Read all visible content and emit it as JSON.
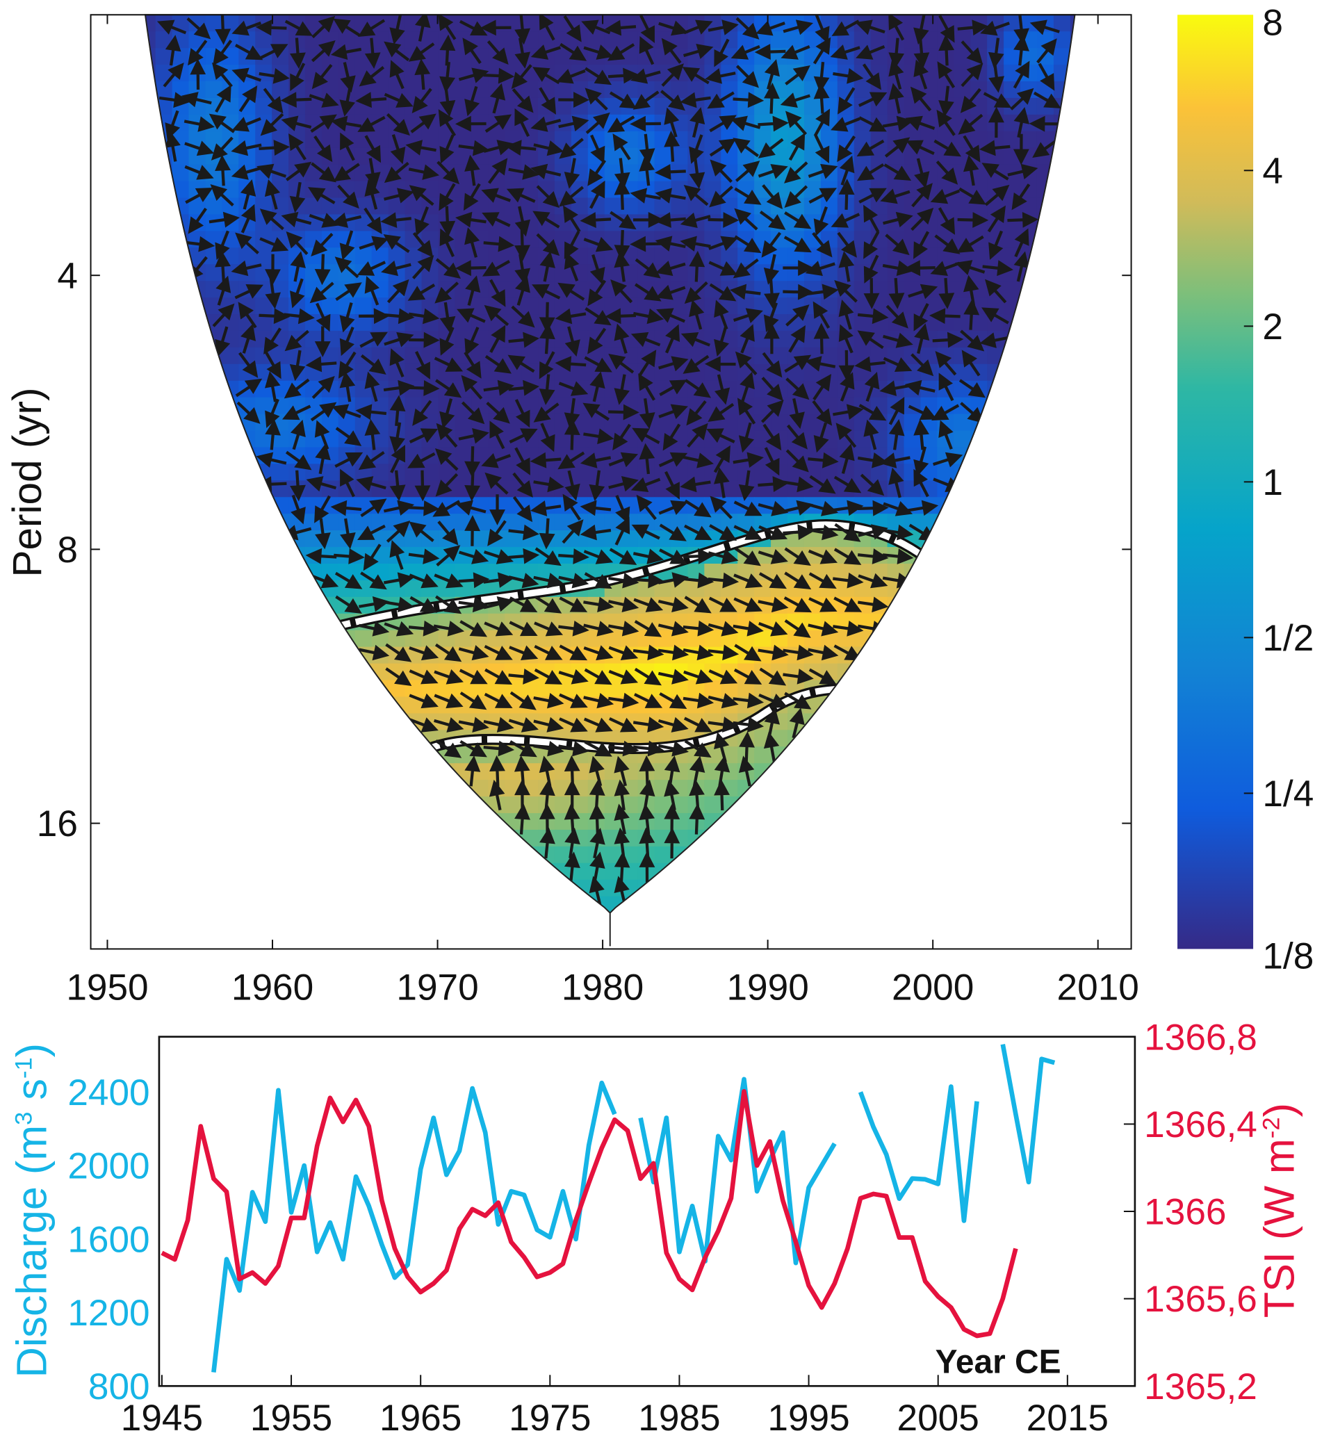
{
  "chart_data": [
    {
      "type": "heatmap",
      "title": "",
      "xlabel": "",
      "ylabel": "Period (yr)",
      "xlim": [
        1949,
        2012
      ],
      "x_ticks": [
        "1950",
        "1960",
        "1970",
        "1980",
        "1990",
        "2000",
        "2010"
      ],
      "y_scale": "log2",
      "ylim": [
        2.07,
        22
      ],
      "y_ticks": [
        "4",
        "8",
        "16"
      ],
      "colorbar": {
        "ticks": [
          "8",
          "4",
          "2",
          "1",
          "1/2",
          "1/4",
          "1/8"
        ],
        "range": [
          0.125,
          8
        ],
        "colormap": "parula"
      },
      "significant_region": {
        "years": [
          1963,
          2000
        ],
        "periods": [
          8,
          13
        ]
      },
      "phase_arrows": "in-phase (pointing right) in the 8-13 yr band"
    },
    {
      "type": "line",
      "xlabel": "Year CE",
      "x_ticks": [
        "1945",
        "1955",
        "1965",
        "1975",
        "1985",
        "1995",
        "2005",
        "2015"
      ],
      "xlim": [
        1945,
        2020
      ],
      "ylabel_left": "Discharge (m",
      "ylabel_left_sup1": "3",
      "ylabel_left_mid": " s",
      "ylabel_left_sup2": "-1",
      "ylabel_left_end": ")",
      "y_left_ticks": [
        "800",
        "1200",
        "1600",
        "2000",
        "2400"
      ],
      "ylim_left": [
        800,
        2700
      ],
      "ylabel_right": "TSI (W m",
      "ylabel_right_sup": "-2",
      "ylabel_right_end": ")",
      "y_right_ticks": [
        "1365,2",
        "1365,6",
        "1366",
        "1366,4",
        "1366,8"
      ],
      "ylim_right": [
        1365.2,
        1366.8
      ],
      "colors": {
        "discharge": "#15b4e6",
        "tsi": "#e5123e"
      },
      "series": [
        {
          "name": "Discharge",
          "axis": "left",
          "x": [
            1949,
            1950,
            1951,
            1952,
            1953,
            1954,
            1955,
            1956,
            1957,
            1958,
            1959,
            1960,
            1961,
            1962,
            1963,
            1964,
            1965,
            1966,
            1967,
            1968,
            1969,
            1970,
            1971,
            1972,
            1973,
            1974,
            1975,
            1976,
            1977,
            1978,
            1979,
            1980,
            null,
            1982,
            1983,
            1984,
            1985,
            1986,
            1987,
            1988,
            1989,
            1990,
            1991,
            1992,
            1993,
            1994,
            1995,
            1996,
            1997,
            null,
            1999,
            2000,
            2001,
            2002,
            2003,
            2004,
            2005,
            2006,
            2007,
            2008,
            null,
            2010,
            2011,
            2012,
            2013,
            2014
          ],
          "values": [
            875,
            1490,
            1320,
            1855,
            1695,
            2410,
            1745,
            2000,
            1530,
            1690,
            1490,
            1940,
            1780,
            1570,
            1390,
            1460,
            1980,
            2260,
            1950,
            2080,
            2420,
            2180,
            1680,
            1860,
            1840,
            1650,
            1610,
            1860,
            1600,
            2110,
            2450,
            2280,
            null,
            2260,
            1910,
            2260,
            1530,
            1780,
            1480,
            2160,
            2030,
            2470,
            1860,
            2030,
            2180,
            1470,
            1880,
            2000,
            2120,
            null,
            2400,
            2210,
            2060,
            1820,
            1930,
            1925,
            1900,
            2430,
            1700,
            2350,
            null,
            2660,
            2280,
            1910,
            2580,
            2560
          ]
        },
        {
          "name": "TSI",
          "axis": "right",
          "x": [
            1945,
            1946,
            1947,
            1948,
            1949,
            1950,
            1951,
            1952,
            1953,
            1954,
            1955,
            1956,
            1957,
            1958,
            1959,
            1960,
            1961,
            1962,
            1963,
            1964,
            1965,
            1966,
            1967,
            1968,
            1969,
            1970,
            1971,
            1972,
            1973,
            1974,
            1975,
            1976,
            1977,
            1978,
            1979,
            1980,
            1981,
            1982,
            1983,
            1984,
            1985,
            1986,
            1987,
            1988,
            1989,
            1990,
            1991,
            1992,
            1993,
            1994,
            1995,
            1996,
            1997,
            1998,
            1999,
            2000,
            2001,
            2002,
            2003,
            2004,
            2005,
            2006,
            2007,
            2008,
            2009,
            2010,
            2011
          ],
          "values": [
            1365.81,
            1365.78,
            1365.96,
            1366.39,
            1366.15,
            1366.09,
            1365.69,
            1365.72,
            1365.67,
            1365.75,
            1365.97,
            1365.97,
            1366.3,
            1366.52,
            1366.41,
            1366.51,
            1366.39,
            1366.05,
            1365.83,
            1365.7,
            1365.63,
            1365.67,
            1365.73,
            1365.92,
            1366.01,
            1365.98,
            1366.04,
            1365.86,
            1365.79,
            1365.7,
            1365.72,
            1365.76,
            1365.96,
            1366.13,
            1366.29,
            1366.42,
            1366.37,
            1366.15,
            1366.22,
            1365.81,
            1365.69,
            1365.64,
            1365.79,
            1365.91,
            1366.06,
            1366.55,
            1366.21,
            1366.32,
            1366.05,
            1365.86,
            1365.66,
            1365.56,
            1365.67,
            1365.83,
            1366.06,
            1366.08,
            1366.07,
            1365.88,
            1365.88,
            1365.68,
            1365.61,
            1365.56,
            1365.46,
            1365.43,
            1365.44,
            1365.6,
            1365.83
          ]
        }
      ]
    }
  ]
}
